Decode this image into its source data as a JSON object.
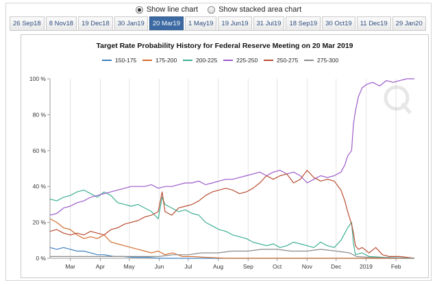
{
  "view_options": [
    {
      "label": "Show line chart",
      "selected": true
    },
    {
      "label": "Show stacked area chart",
      "selected": false
    }
  ],
  "tabs": [
    {
      "label": "26 Sep18",
      "active": false
    },
    {
      "label": "8 Nov18",
      "active": false
    },
    {
      "label": "19 Dec18",
      "active": false
    },
    {
      "label": "30 Jan19",
      "active": false
    },
    {
      "label": "20 Mar19",
      "active": true
    },
    {
      "label": "1 May19",
      "active": false
    },
    {
      "label": "19 Jun19",
      "active": false
    },
    {
      "label": "31 Jul19",
      "active": false
    },
    {
      "label": "18 Sep19",
      "active": false
    },
    {
      "label": "30 Oct19",
      "active": false
    },
    {
      "label": "11 Dec19",
      "active": false
    },
    {
      "label": "29 Jan20",
      "active": false
    }
  ],
  "chart_data": {
    "type": "line",
    "title": "Target Rate Probability History for Federal Reserve Meeting on 20 Mar 2019",
    "legend_position": "top-center",
    "ylim": [
      0,
      100
    ],
    "xlim": [
      "2018-02-08",
      "2019-02-20"
    ],
    "y_ticks": [
      {
        "value": 0,
        "label": "0 %"
      },
      {
        "value": 20,
        "label": "20 %"
      },
      {
        "value": 40,
        "label": "40 %"
      },
      {
        "value": 60,
        "label": "60 %"
      },
      {
        "value": 80,
        "label": "80 %"
      },
      {
        "value": 100,
        "label": "100 %"
      }
    ],
    "x_ticks": [
      {
        "date": "2018-03-01",
        "label": "Mar"
      },
      {
        "date": "2018-04-01",
        "label": "Apr"
      },
      {
        "date": "2018-05-01",
        "label": "May"
      },
      {
        "date": "2018-06-01",
        "label": "Jun"
      },
      {
        "date": "2018-07-01",
        "label": "Jul"
      },
      {
        "date": "2018-08-01",
        "label": "Aug"
      },
      {
        "date": "2018-09-01",
        "label": "Sep"
      },
      {
        "date": "2018-10-01",
        "label": "Oct"
      },
      {
        "date": "2018-11-01",
        "label": "Nov"
      },
      {
        "date": "2018-12-01",
        "label": "Dec"
      },
      {
        "date": "2019-01-01",
        "label": "2019"
      },
      {
        "date": "2019-02-01",
        "label": "Feb"
      }
    ],
    "grid": {
      "vertical": true,
      "horizontal": false
    },
    "series": [
      {
        "name": "150-175",
        "color": "#3a7ec0",
        "points": [
          [
            "2018-02-08",
            6
          ],
          [
            "2018-02-15",
            5
          ],
          [
            "2018-02-22",
            6
          ],
          [
            "2018-03-01",
            5
          ],
          [
            "2018-03-08",
            4
          ],
          [
            "2018-03-15",
            4
          ],
          [
            "2018-03-22",
            3
          ],
          [
            "2018-03-29",
            2
          ],
          [
            "2018-04-05",
            2
          ],
          [
            "2018-04-15",
            1
          ],
          [
            "2018-04-25",
            1
          ],
          [
            "2018-05-05",
            0.5
          ],
          [
            "2018-05-20",
            0.5
          ],
          [
            "2018-06-01",
            0
          ],
          [
            "2019-02-20",
            0
          ]
        ]
      },
      {
        "name": "175-200",
        "color": "#d36b2a",
        "points": [
          [
            "2018-02-08",
            22
          ],
          [
            "2018-02-15",
            20
          ],
          [
            "2018-02-22",
            17
          ],
          [
            "2018-03-01",
            16
          ],
          [
            "2018-03-08",
            13
          ],
          [
            "2018-03-15",
            11
          ],
          [
            "2018-03-22",
            12
          ],
          [
            "2018-03-29",
            11
          ],
          [
            "2018-04-05",
            13
          ],
          [
            "2018-04-12",
            9
          ],
          [
            "2018-04-19",
            8
          ],
          [
            "2018-04-26",
            7
          ],
          [
            "2018-05-03",
            6
          ],
          [
            "2018-05-10",
            5
          ],
          [
            "2018-05-17",
            4
          ],
          [
            "2018-05-24",
            3
          ],
          [
            "2018-05-31",
            4
          ],
          [
            "2018-06-07",
            2
          ],
          [
            "2018-06-15",
            3
          ],
          [
            "2018-06-25",
            1
          ],
          [
            "2018-07-05",
            1
          ],
          [
            "2018-07-20",
            0.5
          ],
          [
            "2018-08-10",
            0
          ],
          [
            "2019-02-20",
            0
          ]
        ]
      },
      {
        "name": "200-225",
        "color": "#3aaf92",
        "points": [
          [
            "2018-02-08",
            33
          ],
          [
            "2018-02-15",
            32
          ],
          [
            "2018-02-22",
            34
          ],
          [
            "2018-03-01",
            35
          ],
          [
            "2018-03-08",
            37
          ],
          [
            "2018-03-15",
            38
          ],
          [
            "2018-03-22",
            36
          ],
          [
            "2018-03-29",
            34
          ],
          [
            "2018-04-05",
            37
          ],
          [
            "2018-04-12",
            35
          ],
          [
            "2018-04-19",
            31
          ],
          [
            "2018-04-26",
            30
          ],
          [
            "2018-05-03",
            29
          ],
          [
            "2018-05-10",
            30
          ],
          [
            "2018-05-17",
            28
          ],
          [
            "2018-05-24",
            26
          ],
          [
            "2018-05-31",
            22
          ],
          [
            "2018-06-04",
            34
          ],
          [
            "2018-06-07",
            30
          ],
          [
            "2018-06-14",
            28
          ],
          [
            "2018-06-21",
            26
          ],
          [
            "2018-06-28",
            27
          ],
          [
            "2018-07-05",
            25
          ],
          [
            "2018-07-12",
            24
          ],
          [
            "2018-07-19",
            20
          ],
          [
            "2018-07-26",
            18
          ],
          [
            "2018-08-02",
            16
          ],
          [
            "2018-08-09",
            15
          ],
          [
            "2018-08-16",
            13
          ],
          [
            "2018-08-23",
            12
          ],
          [
            "2018-08-30",
            11
          ],
          [
            "2018-09-06",
            9
          ],
          [
            "2018-09-13",
            8
          ],
          [
            "2018-09-20",
            7
          ],
          [
            "2018-09-27",
            8
          ],
          [
            "2018-10-04",
            6
          ],
          [
            "2018-10-11",
            7
          ],
          [
            "2018-10-18",
            9
          ],
          [
            "2018-10-25",
            8
          ],
          [
            "2018-11-01",
            7
          ],
          [
            "2018-11-08",
            6
          ],
          [
            "2018-11-15",
            9
          ],
          [
            "2018-11-22",
            7
          ],
          [
            "2018-11-29",
            6
          ],
          [
            "2018-12-06",
            10
          ],
          [
            "2018-12-13",
            17
          ],
          [
            "2018-12-17",
            20
          ],
          [
            "2018-12-19",
            8
          ],
          [
            "2018-12-21",
            2
          ],
          [
            "2018-12-28",
            3
          ],
          [
            "2019-01-04",
            1
          ],
          [
            "2019-01-20",
            0.5
          ],
          [
            "2019-02-20",
            0
          ]
        ]
      },
      {
        "name": "225-250",
        "color": "#9b59c9",
        "points": [
          [
            "2018-02-08",
            24
          ],
          [
            "2018-02-15",
            25
          ],
          [
            "2018-02-22",
            28
          ],
          [
            "2018-03-01",
            29
          ],
          [
            "2018-03-08",
            31
          ],
          [
            "2018-03-15",
            32
          ],
          [
            "2018-03-22",
            34
          ],
          [
            "2018-03-29",
            35
          ],
          [
            "2018-04-05",
            36
          ],
          [
            "2018-04-12",
            37
          ],
          [
            "2018-04-19",
            38
          ],
          [
            "2018-04-26",
            39
          ],
          [
            "2018-05-03",
            40
          ],
          [
            "2018-05-10",
            40
          ],
          [
            "2018-05-17",
            40
          ],
          [
            "2018-05-24",
            41
          ],
          [
            "2018-05-31",
            39
          ],
          [
            "2018-06-07",
            40
          ],
          [
            "2018-06-14",
            40
          ],
          [
            "2018-06-21",
            41
          ],
          [
            "2018-06-28",
            42
          ],
          [
            "2018-07-05",
            42
          ],
          [
            "2018-07-12",
            43
          ],
          [
            "2018-07-19",
            41
          ],
          [
            "2018-07-26",
            42
          ],
          [
            "2018-08-02",
            43
          ],
          [
            "2018-08-09",
            44
          ],
          [
            "2018-08-16",
            44
          ],
          [
            "2018-08-23",
            45
          ],
          [
            "2018-08-30",
            46
          ],
          [
            "2018-09-06",
            47
          ],
          [
            "2018-09-13",
            48
          ],
          [
            "2018-09-20",
            46
          ],
          [
            "2018-09-27",
            48
          ],
          [
            "2018-10-04",
            49
          ],
          [
            "2018-10-11",
            47
          ],
          [
            "2018-10-18",
            48
          ],
          [
            "2018-10-25",
            46
          ],
          [
            "2018-11-01",
            42
          ],
          [
            "2018-11-08",
            44
          ],
          [
            "2018-11-15",
            46
          ],
          [
            "2018-11-22",
            45
          ],
          [
            "2018-11-29",
            46
          ],
          [
            "2018-12-06",
            48
          ],
          [
            "2018-12-10",
            52
          ],
          [
            "2018-12-13",
            57
          ],
          [
            "2018-12-17",
            60
          ],
          [
            "2018-12-19",
            75
          ],
          [
            "2018-12-21",
            82
          ],
          [
            "2018-12-24",
            90
          ],
          [
            "2018-12-28",
            95
          ],
          [
            "2019-01-02",
            97
          ],
          [
            "2019-01-08",
            98
          ],
          [
            "2019-01-15",
            96
          ],
          [
            "2019-01-22",
            99
          ],
          [
            "2019-01-29",
            98
          ],
          [
            "2019-02-05",
            99
          ],
          [
            "2019-02-12",
            100
          ],
          [
            "2019-02-20",
            100
          ]
        ]
      },
      {
        "name": "250-275",
        "color": "#b94a2e",
        "points": [
          [
            "2018-02-08",
            15
          ],
          [
            "2018-02-15",
            16
          ],
          [
            "2018-02-22",
            14
          ],
          [
            "2018-03-01",
            13
          ],
          [
            "2018-03-08",
            14
          ],
          [
            "2018-03-15",
            13
          ],
          [
            "2018-03-22",
            15
          ],
          [
            "2018-03-29",
            14
          ],
          [
            "2018-04-05",
            13
          ],
          [
            "2018-04-12",
            16
          ],
          [
            "2018-04-19",
            17
          ],
          [
            "2018-04-26",
            19
          ],
          [
            "2018-05-03",
            20
          ],
          [
            "2018-05-10",
            21
          ],
          [
            "2018-05-17",
            23
          ],
          [
            "2018-05-24",
            24
          ],
          [
            "2018-05-31",
            26
          ],
          [
            "2018-06-04",
            37
          ],
          [
            "2018-06-07",
            26
          ],
          [
            "2018-06-14",
            24
          ],
          [
            "2018-06-21",
            28
          ],
          [
            "2018-06-28",
            29
          ],
          [
            "2018-07-05",
            30
          ],
          [
            "2018-07-12",
            32
          ],
          [
            "2018-07-19",
            35
          ],
          [
            "2018-07-26",
            37
          ],
          [
            "2018-08-02",
            38
          ],
          [
            "2018-08-09",
            39
          ],
          [
            "2018-08-16",
            38
          ],
          [
            "2018-08-23",
            36
          ],
          [
            "2018-08-30",
            37
          ],
          [
            "2018-09-06",
            39
          ],
          [
            "2018-09-13",
            42
          ],
          [
            "2018-09-20",
            46
          ],
          [
            "2018-09-27",
            44
          ],
          [
            "2018-10-04",
            46
          ],
          [
            "2018-10-11",
            47
          ],
          [
            "2018-10-18",
            42
          ],
          [
            "2018-10-25",
            44
          ],
          [
            "2018-11-01",
            49
          ],
          [
            "2018-11-08",
            45
          ],
          [
            "2018-11-15",
            43
          ],
          [
            "2018-11-22",
            44
          ],
          [
            "2018-11-29",
            43
          ],
          [
            "2018-12-06",
            38
          ],
          [
            "2018-12-10",
            32
          ],
          [
            "2018-12-13",
            26
          ],
          [
            "2018-12-17",
            19
          ],
          [
            "2018-12-19",
            14
          ],
          [
            "2018-12-21",
            7
          ],
          [
            "2018-12-24",
            5
          ],
          [
            "2018-12-28",
            6
          ],
          [
            "2019-01-04",
            3
          ],
          [
            "2019-01-11",
            6
          ],
          [
            "2019-01-18",
            2
          ],
          [
            "2019-01-25",
            1
          ],
          [
            "2019-02-05",
            1
          ],
          [
            "2019-02-20",
            0
          ]
        ]
      },
      {
        "name": "275-300",
        "color": "#8a8a8a",
        "points": [
          [
            "2018-02-08",
            1
          ],
          [
            "2018-02-22",
            1
          ],
          [
            "2018-03-15",
            1
          ],
          [
            "2018-04-15",
            1
          ],
          [
            "2018-05-15",
            1
          ],
          [
            "2018-06-01",
            1
          ],
          [
            "2018-06-15",
            2
          ],
          [
            "2018-07-01",
            2
          ],
          [
            "2018-07-15",
            3
          ],
          [
            "2018-08-01",
            3
          ],
          [
            "2018-08-15",
            4
          ],
          [
            "2018-09-01",
            4
          ],
          [
            "2018-09-15",
            5
          ],
          [
            "2018-10-01",
            5
          ],
          [
            "2018-10-15",
            4
          ],
          [
            "2018-11-01",
            4
          ],
          [
            "2018-11-15",
            5
          ],
          [
            "2018-12-01",
            4
          ],
          [
            "2018-12-15",
            3
          ],
          [
            "2018-12-22",
            1
          ],
          [
            "2019-01-05",
            0.5
          ],
          [
            "2019-02-20",
            0
          ]
        ]
      }
    ]
  }
}
